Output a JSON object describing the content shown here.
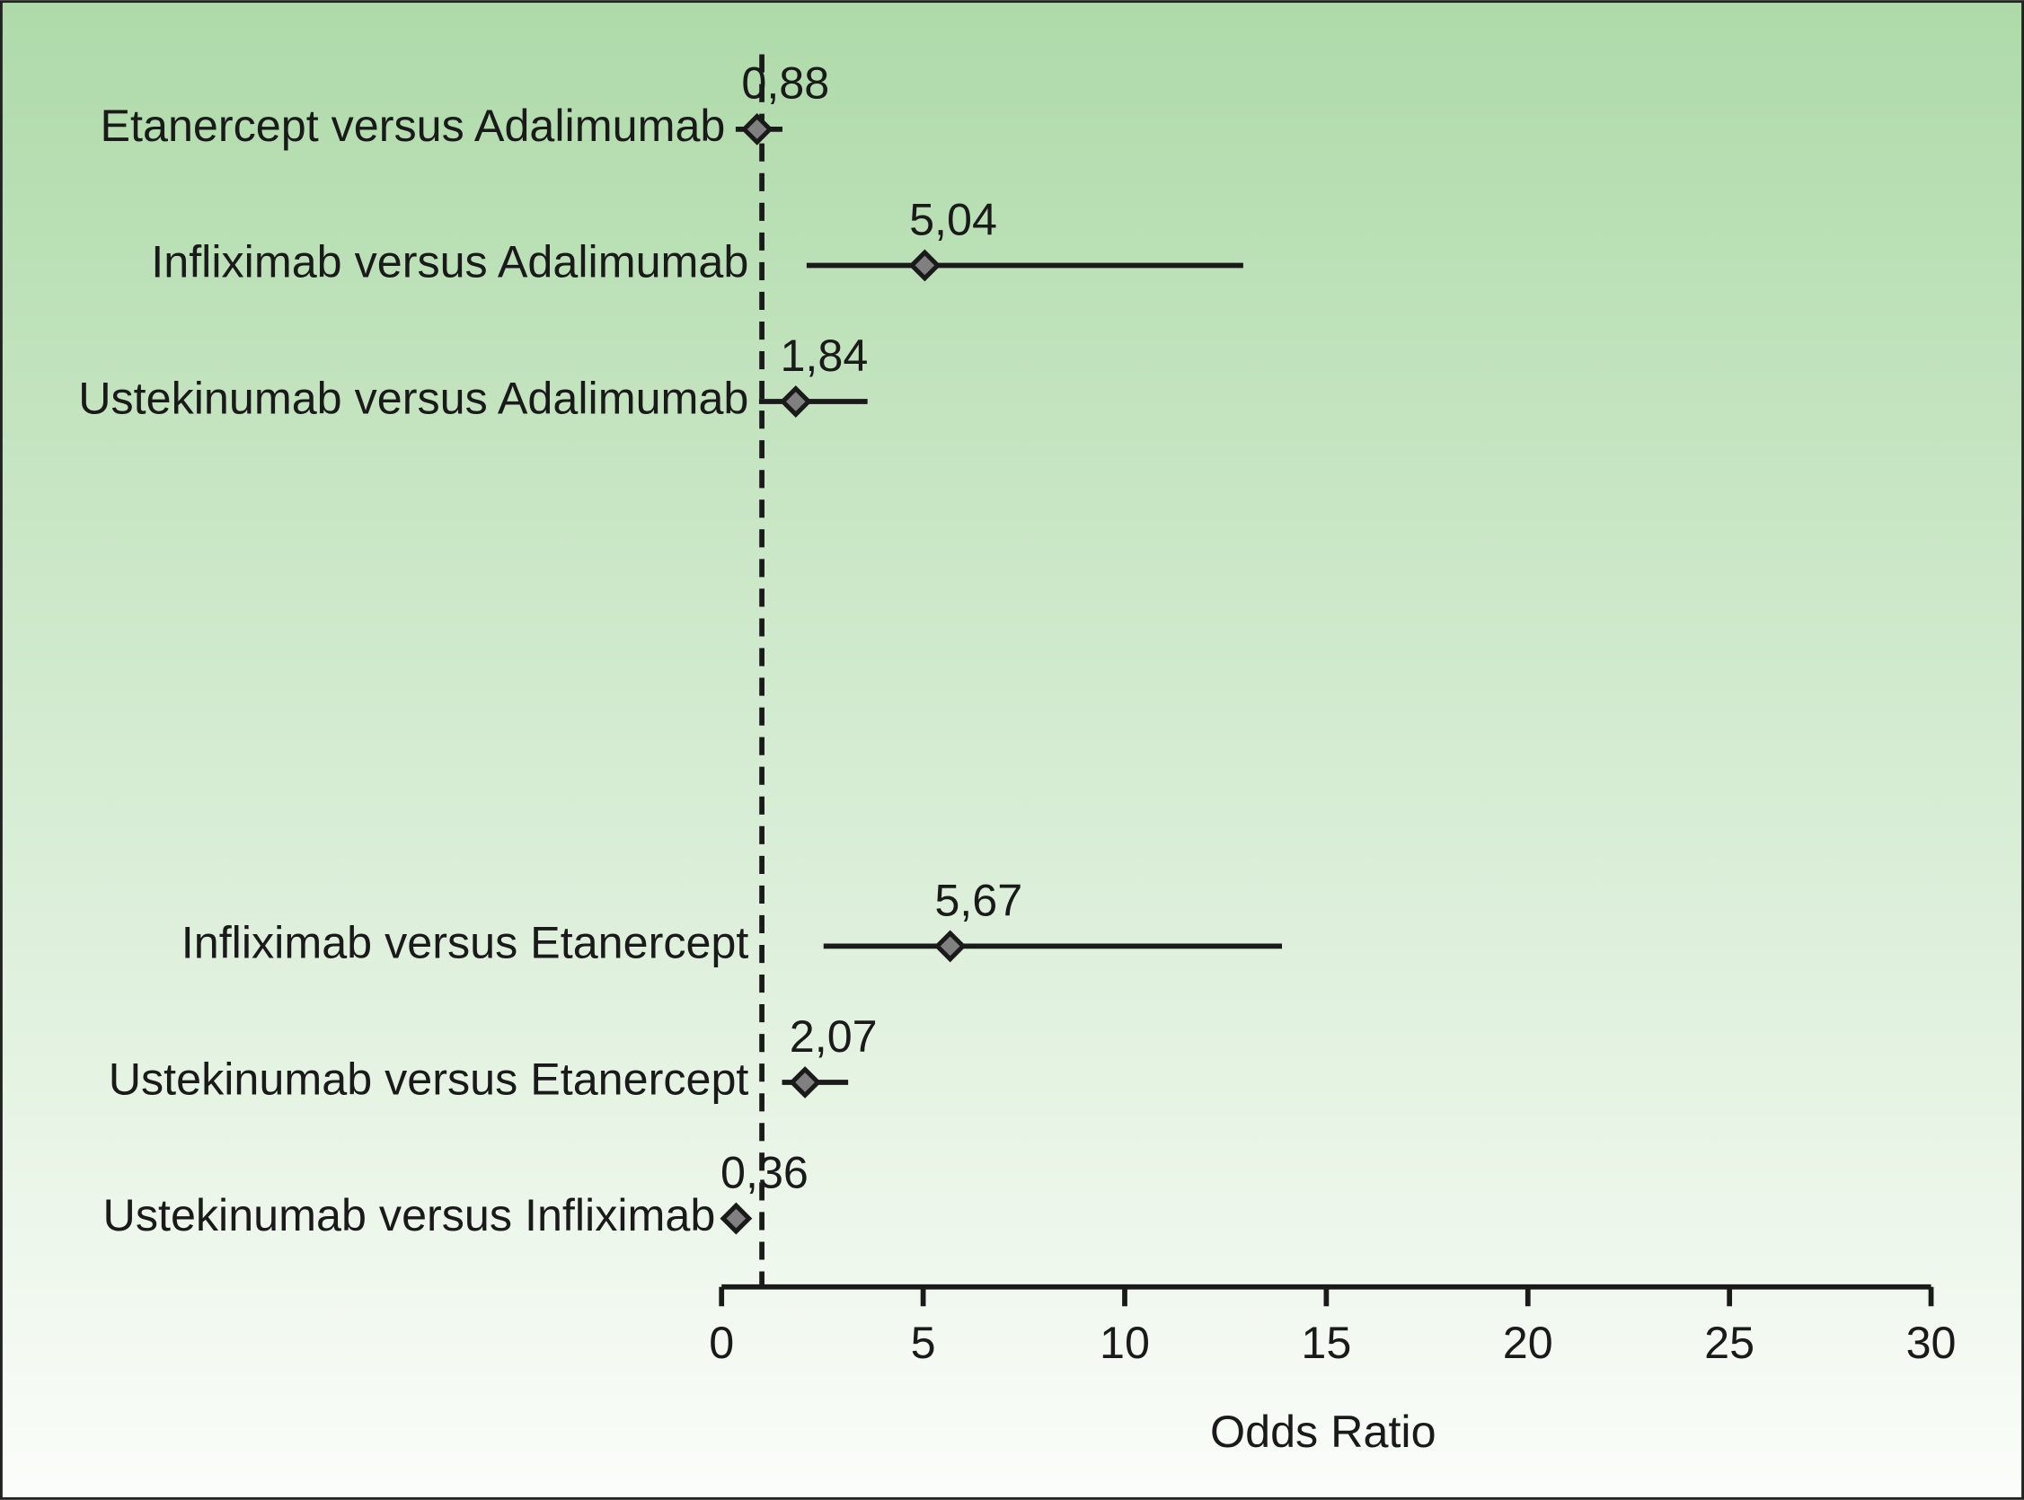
{
  "chart_data": {
    "type": "forest",
    "categories": [
      "Etanercept versus Adalimumab",
      "Infliximab versus Adalimumab",
      "Ustekinumab versus Adalimumab",
      null,
      null,
      null,
      "Infliximab versus Etanercept",
      "Ustekinumab versus Etanercept",
      "Ustekinumab versus Infliximab"
    ],
    "values": [
      0.88,
      5.04,
      1.84,
      null,
      null,
      null,
      5.67,
      2.07,
      0.36
    ],
    "value_labels": [
      "0,88",
      "5,04",
      "1,84",
      null,
      null,
      null,
      "5,67",
      "2,07",
      "0,36"
    ],
    "lower": [
      0.35,
      2.11,
      0.93,
      null,
      null,
      null,
      2.53,
      1.5,
      0.3
    ],
    "upper": [
      1.51,
      12.94,
      3.62,
      null,
      null,
      null,
      13.9,
      3.14,
      0.45
    ],
    "color": "#808080",
    "reference_line": 1,
    "xlim": [
      0,
      30
    ],
    "xticks": [
      0,
      5,
      10,
      15,
      20,
      25,
      30
    ],
    "xlabel": "Odds Ratio"
  }
}
